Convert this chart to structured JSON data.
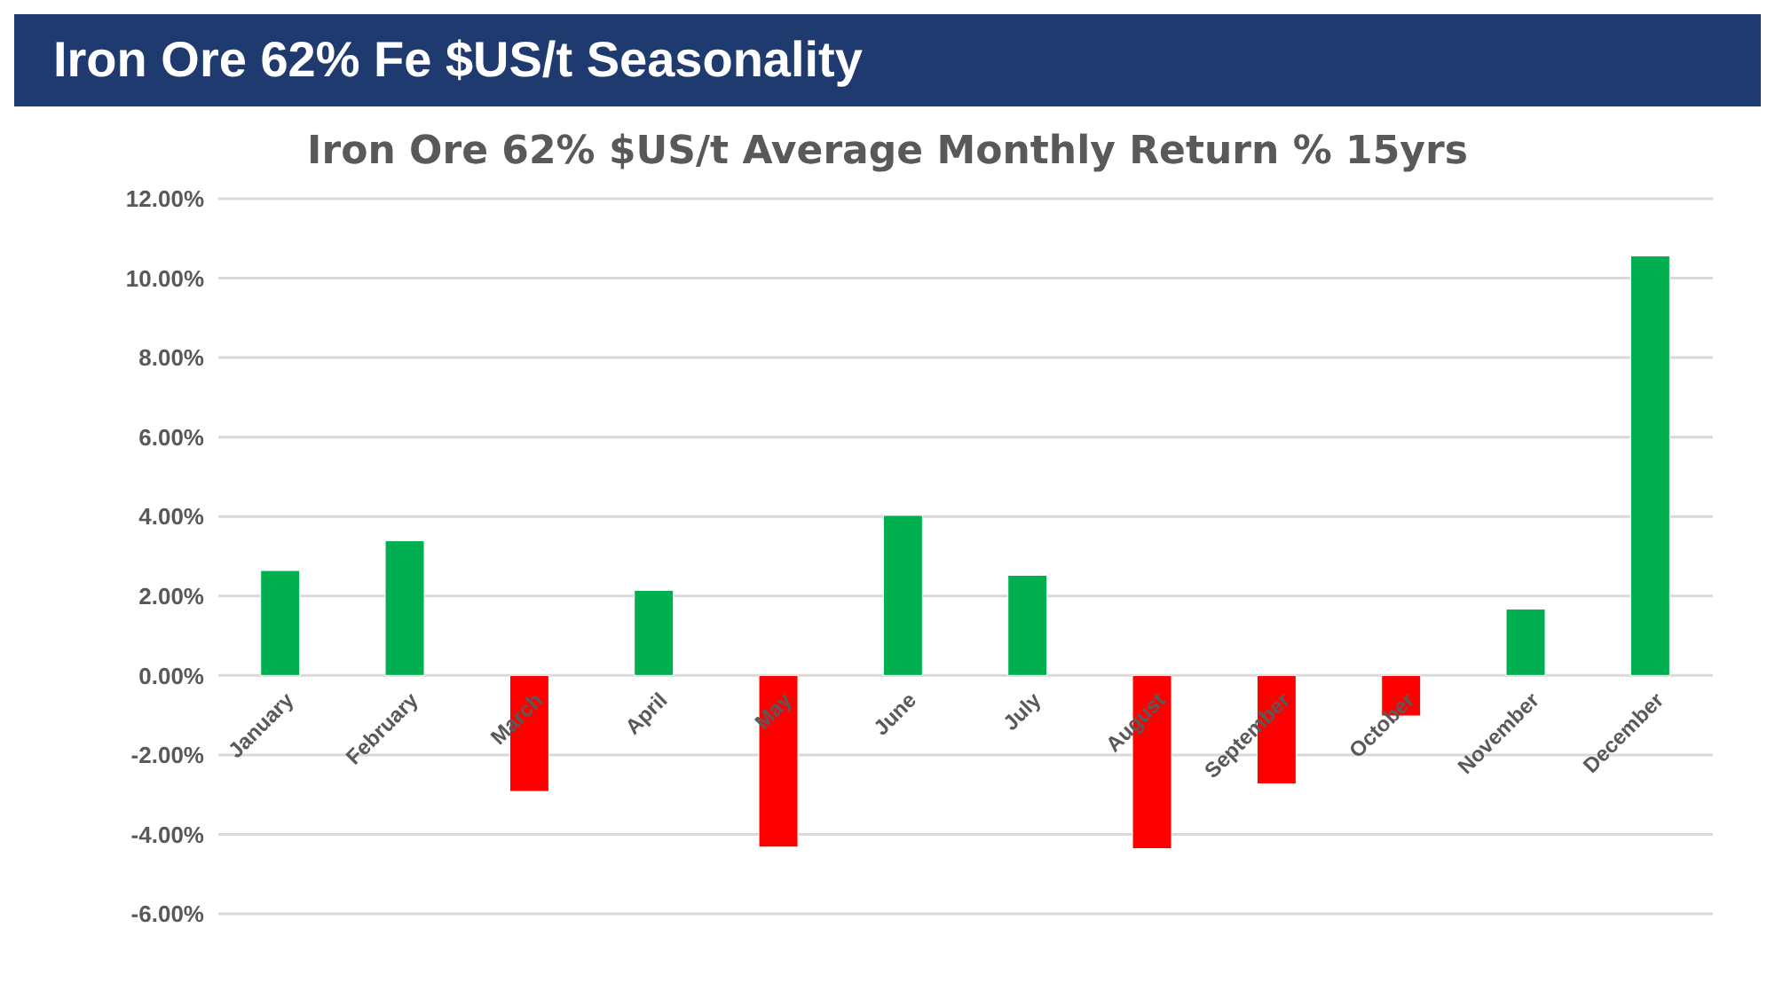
{
  "chart_data": {
    "type": "bar",
    "title": "Iron Ore 62% Fe $US/t Seasonality",
    "subtitle": "Iron Ore 62% $US/t Average Monthly Return % 15yrs",
    "categories": [
      "January",
      "February",
      "March",
      "April",
      "May",
      "June",
      "July",
      "August",
      "September",
      "October",
      "November",
      "December"
    ],
    "values": [
      2.64,
      3.39,
      -2.92,
      2.14,
      -4.32,
      4.03,
      2.52,
      -4.36,
      -2.73,
      -1.02,
      1.67,
      10.56
    ],
    "colors": [
      "#00b050",
      "#00b050",
      "#ff0000",
      "#00b050",
      "#ff0000",
      "#00b050",
      "#00b050",
      "#ff0000",
      "#ff0000",
      "#ff0000",
      "#00b050",
      "#00b050"
    ],
    "ylim": [
      -6,
      12
    ],
    "yticks": [
      {
        "value": -6,
        "label": "-6.00%"
      },
      {
        "value": -4,
        "label": "-4.00%"
      },
      {
        "value": -2,
        "label": "-2.00%"
      },
      {
        "value": 0,
        "label": "0.00%"
      },
      {
        "value": 2,
        "label": "2.00%"
      },
      {
        "value": 4,
        "label": "4.00%"
      },
      {
        "value": 6,
        "label": "6.00%"
      },
      {
        "value": 8,
        "label": "8.00%"
      },
      {
        "value": 10,
        "label": "10.00%"
      },
      {
        "value": 12,
        "label": "12.00%"
      }
    ],
    "grid": "y",
    "legend": false
  }
}
